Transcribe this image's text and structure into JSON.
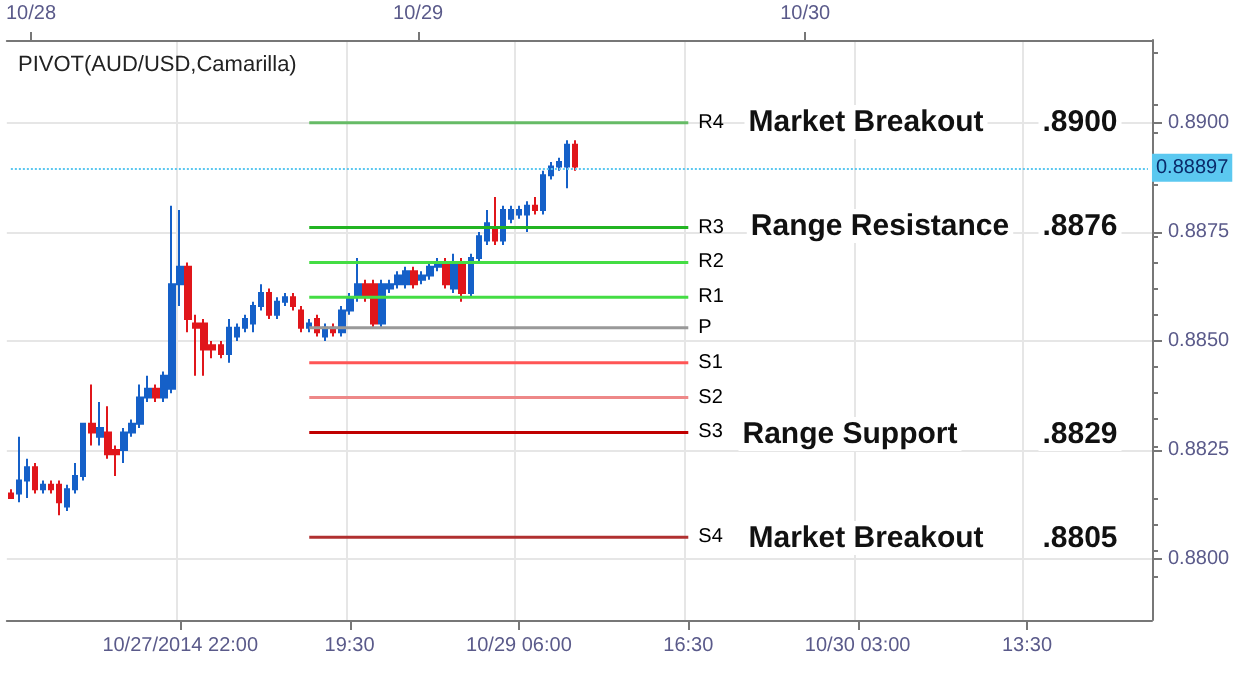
{
  "chart_data": {
    "type": "candlestick",
    "title": "PIVOT(AUD/USD,Camarilla)",
    "categories": [
      null,
      null,
      null,
      null,
      null,
      null,
      null,
      null,
      null,
      null,
      null,
      null,
      null,
      null,
      null,
      null,
      null,
      null,
      null,
      null,
      null,
      "10/27/2014 22:00",
      null,
      null,
      null,
      null,
      null,
      null,
      null,
      null,
      null,
      null,
      null,
      null,
      null,
      null,
      null,
      null,
      null,
      null,
      null,
      null,
      "19:30",
      null,
      null,
      null,
      null,
      null,
      null,
      null,
      null,
      null,
      null,
      null,
      null,
      null,
      null,
      null,
      null,
      null,
      null,
      null,
      null,
      "10/29 06:00",
      null,
      null,
      null,
      null,
      null,
      null,
      null,
      null,
      null,
      null,
      null,
      null,
      null,
      null,
      null,
      null,
      null,
      null,
      null,
      null,
      "16:30",
      null,
      null,
      null,
      null,
      null,
      null,
      null,
      null,
      null,
      null,
      null,
      null,
      null,
      null,
      null,
      null,
      null,
      null,
      null,
      null,
      "10/30 03:00",
      null,
      null,
      null,
      null,
      null,
      null,
      null,
      null,
      null,
      null,
      null,
      null,
      null,
      null,
      null,
      null,
      null,
      null,
      null,
      null,
      "13:30",
      null,
      null,
      null,
      null,
      null,
      null,
      null,
      null,
      null,
      null,
      null,
      null,
      null,
      null,
      null
    ],
    "ohlc": [
      [
        0.8815,
        0.8816,
        0.8814,
        0.8814
      ],
      [
        0.8815,
        0.8828,
        0.8813,
        0.8818
      ],
      [
        0.8818,
        0.8823,
        0.8814,
        0.8821
      ],
      [
        0.8821,
        0.8822,
        0.8815,
        0.8816
      ],
      [
        0.8816,
        0.8818,
        0.8815,
        0.8817
      ],
      [
        0.8817,
        0.8818,
        0.8815,
        0.8816
      ],
      [
        0.8817,
        0.8818,
        0.881,
        0.8813
      ],
      [
        0.8812,
        0.8817,
        0.8811,
        0.8816
      ],
      [
        0.8816,
        0.8822,
        0.8815,
        0.8819
      ],
      [
        0.8819,
        0.8831,
        0.8818,
        0.8831
      ],
      [
        0.8831,
        0.884,
        0.8826,
        0.8829
      ],
      [
        0.8828,
        0.8836,
        0.8826,
        0.883
      ],
      [
        0.8829,
        0.8835,
        0.8823,
        0.8824
      ],
      [
        0.8825,
        0.8826,
        0.8819,
        0.8824
      ],
      [
        0.8825,
        0.883,
        0.8822,
        0.8829
      ],
      [
        0.8829,
        0.8832,
        0.8828,
        0.8831
      ],
      [
        0.8831,
        0.884,
        0.883,
        0.8837
      ],
      [
        0.8837,
        0.8842,
        0.8836,
        0.8839
      ],
      [
        0.8839,
        0.884,
        0.8836,
        0.8837
      ],
      [
        0.8837,
        0.8843,
        0.8836,
        0.8842
      ],
      [
        0.8839,
        0.8881,
        0.8838,
        0.8863
      ],
      [
        0.8863,
        0.888,
        0.8858,
        0.8867
      ],
      [
        0.8867,
        0.8868,
        0.8852,
        0.8855
      ],
      [
        0.8854,
        0.8856,
        0.8842,
        0.8853
      ],
      [
        0.8854,
        0.8855,
        0.8842,
        0.8848
      ],
      [
        0.8849,
        0.885,
        0.8846,
        0.8848
      ],
      [
        0.8849,
        0.885,
        0.8846,
        0.8847
      ],
      [
        0.8847,
        0.8855,
        0.8845,
        0.8853
      ],
      [
        0.8851,
        0.8854,
        0.885,
        0.8853
      ],
      [
        0.8853,
        0.8856,
        0.8852,
        0.8855
      ],
      [
        0.8854,
        0.8859,
        0.8852,
        0.8858
      ],
      [
        0.8858,
        0.8863,
        0.8857,
        0.8861
      ],
      [
        0.8861,
        0.8862,
        0.8855,
        0.8856
      ],
      [
        0.8856,
        0.886,
        0.8855,
        0.8859
      ],
      [
        0.8859,
        0.8861,
        0.8858,
        0.886
      ],
      [
        0.886,
        0.8861,
        0.8857,
        0.8858
      ],
      [
        0.8857,
        0.8858,
        0.8852,
        0.8853
      ],
      [
        0.8853,
        0.8855,
        0.8852,
        0.8854
      ],
      [
        0.8855,
        0.8856,
        0.8851,
        0.8852
      ],
      [
        0.8851,
        0.8854,
        0.885,
        0.8853
      ],
      [
        0.8853,
        0.8854,
        0.8851,
        0.8852
      ],
      [
        0.8852,
        0.8858,
        0.8851,
        0.8857
      ],
      [
        0.8857,
        0.8861,
        0.8856,
        0.886
      ],
      [
        0.886,
        0.8869,
        0.8859,
        0.8863
      ],
      [
        0.8863,
        0.8864,
        0.8859,
        0.886
      ],
      [
        0.8863,
        0.8864,
        0.8853,
        0.8854
      ],
      [
        0.8854,
        0.8864,
        0.8853,
        0.8863
      ],
      [
        0.8862,
        0.8864,
        0.8861,
        0.8863
      ],
      [
        0.8863,
        0.8866,
        0.8862,
        0.8865
      ],
      [
        0.8863,
        0.8867,
        0.8862,
        0.8866
      ],
      [
        0.8866,
        0.8867,
        0.8862,
        0.8863
      ],
      [
        0.8864,
        0.8866,
        0.8863,
        0.8865
      ],
      [
        0.8865,
        0.8868,
        0.8864,
        0.8867
      ],
      [
        0.8867,
        0.8869,
        0.8866,
        0.8868
      ],
      [
        0.8868,
        0.8869,
        0.8862,
        0.8863
      ],
      [
        0.8862,
        0.887,
        0.8861,
        0.8868
      ],
      [
        0.8868,
        0.8869,
        0.8859,
        0.8861
      ],
      [
        0.8861,
        0.887,
        0.886,
        0.8869
      ],
      [
        0.8869,
        0.8875,
        0.8868,
        0.8874
      ],
      [
        0.8873,
        0.888,
        0.8872,
        0.8877
      ],
      [
        0.8876,
        0.8883,
        0.8872,
        0.8873
      ],
      [
        0.8873,
        0.8881,
        0.8872,
        0.888
      ],
      [
        0.8878,
        0.8881,
        0.8877,
        0.888
      ],
      [
        0.8879,
        0.8881,
        0.8878,
        0.888
      ],
      [
        0.8879,
        0.8882,
        0.8875,
        0.8881
      ],
      [
        0.8881,
        0.8883,
        0.8879,
        0.888
      ],
      [
        0.888,
        0.8889,
        0.8879,
        0.8888
      ],
      [
        0.8888,
        0.8891,
        0.8887,
        0.889
      ],
      [
        0.889,
        0.8892,
        0.8889,
        0.8891
      ],
      [
        0.889,
        0.8896,
        0.8885,
        0.8895
      ],
      [
        0.8895,
        0.8896,
        0.8889,
        0.889
      ],
      null,
      null,
      null,
      null,
      null,
      null,
      null,
      null,
      null,
      null,
      null,
      null,
      null,
      null,
      null,
      null,
      null,
      null,
      null,
      null,
      null,
      null,
      null,
      null,
      null,
      null,
      null,
      null,
      null,
      null,
      null,
      null,
      null,
      null,
      null,
      null,
      null,
      null,
      null,
      null,
      null,
      null,
      null,
      null,
      null,
      null,
      null,
      null,
      null,
      null,
      null,
      null,
      null,
      null,
      null,
      null,
      null,
      null,
      null,
      null,
      null,
      null,
      null,
      null,
      null,
      null,
      null,
      null,
      null,
      null,
      null
    ],
    "colors": [
      "#e0161b",
      "#1560c8",
      "#1560c8",
      "#e0161b",
      "#1560c8",
      "#e0161b",
      "#e0161b",
      "#1560c8",
      "#1560c8",
      "#1560c8",
      "#e0161b",
      "#1560c8",
      "#e0161b",
      "#e0161b",
      "#1560c8",
      "#1560c8",
      "#1560c8",
      "#1560c8",
      "#e0161b",
      "#1560c8",
      "#1560c8",
      "#1560c8",
      "#e0161b",
      "#e0161b",
      "#e0161b",
      "#e0161b",
      "#e0161b",
      "#1560c8",
      "#1560c8",
      "#1560c8",
      "#1560c8",
      "#1560c8",
      "#e0161b",
      "#1560c8",
      "#1560c8",
      "#e0161b",
      "#e0161b",
      "#1560c8",
      "#e0161b",
      "#1560c8",
      "#e0161b",
      "#1560c8",
      "#1560c8",
      "#1560c8",
      "#e0161b",
      "#e0161b",
      "#1560c8",
      "#1560c8",
      "#1560c8",
      "#1560c8",
      "#e0161b",
      "#1560c8",
      "#1560c8",
      "#1560c8",
      "#e0161b",
      "#1560c8",
      "#e0161b",
      "#1560c8",
      "#1560c8",
      "#1560c8",
      "#e0161b",
      "#1560c8",
      "#1560c8",
      "#1560c8",
      "#1560c8",
      "#e0161b",
      "#1560c8",
      "#1560c8",
      "#1560c8",
      "#1560c8",
      "#e0161b",
      null,
      null,
      null,
      null,
      null,
      null,
      null,
      null,
      null,
      null,
      null,
      null,
      null,
      null,
      null,
      null,
      null,
      null,
      null,
      null,
      null,
      null,
      null,
      null,
      null,
      null,
      null,
      null,
      null,
      null,
      null,
      null,
      null,
      null,
      null,
      null,
      null,
      null,
      null,
      null,
      null,
      null,
      null,
      null,
      null,
      null,
      null,
      null,
      null,
      null,
      null,
      null,
      null,
      null,
      null,
      null,
      null,
      null,
      null,
      null,
      null,
      null,
      null,
      null,
      null,
      null,
      null,
      null,
      null,
      null,
      null
    ],
    "series": [
      {
        "type": "line",
        "name": "R4",
        "color": "#66bb66",
        "values": [
          null,
          null,
          null,
          null,
          null,
          null,
          null,
          null,
          null,
          null,
          null,
          null,
          null,
          null,
          null,
          null,
          null,
          null,
          null,
          null,
          null,
          null,
          null,
          null,
          null,
          null,
          null,
          null,
          null,
          null,
          null,
          null,
          null,
          null,
          null,
          null,
          null,
          0.89,
          0.89,
          0.89,
          0.89,
          0.89,
          0.89,
          0.89,
          0.89,
          0.89,
          0.89,
          0.89,
          0.89,
          0.89,
          0.89,
          0.89,
          0.89,
          0.89,
          0.89,
          0.89,
          0.89,
          0.89,
          0.89,
          0.89,
          0.89,
          0.89,
          0.89,
          0.89,
          0.89,
          0.89,
          0.89,
          0.89,
          0.89,
          0.89,
          0.89,
          0.89,
          0.89,
          0.89,
          0.89,
          0.89,
          0.89,
          0.89,
          0.89,
          0.89,
          0.89,
          0.89,
          0.89,
          0.89,
          0.89,
          null,
          null,
          null,
          null,
          null,
          null,
          null,
          null,
          null,
          null,
          null,
          null,
          null,
          null,
          null,
          null,
          null,
          null,
          null,
          null,
          null,
          null,
          null,
          null,
          null,
          null,
          null,
          null,
          null,
          null,
          null,
          null,
          null,
          null,
          null,
          null,
          null,
          null,
          null,
          null,
          null,
          null,
          null,
          null,
          null,
          null,
          null,
          null,
          null,
          null,
          null,
          null,
          null,
          null,
          null,
          null,
          null
        ]
      },
      {
        "type": "line",
        "name": "R3",
        "color": "#22b422",
        "values": [
          null,
          null,
          null,
          null,
          null,
          null,
          null,
          null,
          null,
          null,
          null,
          null,
          null,
          null,
          null,
          null,
          null,
          null,
          null,
          null,
          null,
          null,
          null,
          null,
          null,
          null,
          null,
          null,
          null,
          null,
          null,
          null,
          null,
          null,
          null,
          null,
          null,
          0.8876,
          0.8876,
          0.8876,
          0.8876,
          0.8876,
          0.8876,
          0.8876,
          0.8876,
          0.8876,
          0.8876,
          0.8876,
          0.8876,
          0.8876,
          0.8876,
          0.8876,
          0.8876,
          0.8876,
          0.8876,
          0.8876,
          0.8876,
          0.8876,
          0.8876,
          0.8876,
          0.8876,
          0.8876,
          0.8876,
          0.8876,
          0.8876,
          0.8876,
          0.8876,
          0.8876,
          0.8876,
          0.8876,
          0.8876,
          0.8876,
          0.8876,
          0.8876,
          0.8876,
          0.8876,
          0.8876,
          0.8876,
          0.8876,
          0.8876,
          0.8876,
          0.8876,
          0.8876,
          0.8876,
          0.8876,
          null,
          null,
          null,
          null,
          null,
          null,
          null,
          null,
          null,
          null,
          null,
          null,
          null,
          null,
          null,
          null,
          null,
          null,
          null,
          null,
          null,
          null,
          null,
          null,
          null,
          null,
          null,
          null,
          null,
          null,
          null,
          null,
          null,
          null,
          null,
          null,
          null,
          null,
          null,
          null,
          null,
          null,
          null,
          null,
          null,
          null,
          null,
          null,
          null,
          null,
          null,
          null,
          null,
          null,
          null,
          null,
          null
        ]
      },
      {
        "type": "line",
        "name": "R2",
        "color": "#44dd44",
        "values": [
          null,
          null,
          null,
          null,
          null,
          null,
          null,
          null,
          null,
          null,
          null,
          null,
          null,
          null,
          null,
          null,
          null,
          null,
          null,
          null,
          null,
          null,
          null,
          null,
          null,
          null,
          null,
          null,
          null,
          null,
          null,
          null,
          null,
          null,
          null,
          null,
          null,
          0.8868,
          0.8868,
          0.8868,
          0.8868,
          0.8868,
          0.8868,
          0.8868,
          0.8868,
          0.8868,
          0.8868,
          0.8868,
          0.8868,
          0.8868,
          0.8868,
          0.8868,
          0.8868,
          0.8868,
          0.8868,
          0.8868,
          0.8868,
          0.8868,
          0.8868,
          0.8868,
          0.8868,
          0.8868,
          0.8868,
          0.8868,
          0.8868,
          0.8868,
          0.8868,
          0.8868,
          0.8868,
          0.8868,
          0.8868,
          0.8868,
          0.8868,
          0.8868,
          0.8868,
          0.8868,
          0.8868,
          0.8868,
          0.8868,
          0.8868,
          0.8868,
          0.8868,
          0.8868,
          0.8868,
          0.8868,
          null,
          null,
          null,
          null,
          null,
          null,
          null,
          null,
          null,
          null,
          null,
          null,
          null,
          null,
          null,
          null,
          null,
          null,
          null,
          null,
          null,
          null,
          null,
          null,
          null,
          null,
          null,
          null,
          null,
          null,
          null,
          null,
          null,
          null,
          null,
          null,
          null,
          null,
          null,
          null,
          null,
          null,
          null,
          null,
          null,
          null,
          null,
          null,
          null,
          null,
          null,
          null,
          null,
          null,
          null,
          null,
          null
        ]
      },
      {
        "type": "line",
        "name": "R1",
        "color": "#44dd44",
        "values": [
          null,
          null,
          null,
          null,
          null,
          null,
          null,
          null,
          null,
          null,
          null,
          null,
          null,
          null,
          null,
          null,
          null,
          null,
          null,
          null,
          null,
          null,
          null,
          null,
          null,
          null,
          null,
          null,
          null,
          null,
          null,
          null,
          null,
          null,
          null,
          null,
          null,
          0.886,
          0.886,
          0.886,
          0.886,
          0.886,
          0.886,
          0.886,
          0.886,
          0.886,
          0.886,
          0.886,
          0.886,
          0.886,
          0.886,
          0.886,
          0.886,
          0.886,
          0.886,
          0.886,
          0.886,
          0.886,
          0.886,
          0.886,
          0.886,
          0.886,
          0.886,
          0.886,
          0.886,
          0.886,
          0.886,
          0.886,
          0.886,
          0.886,
          0.886,
          0.886,
          0.886,
          0.886,
          0.886,
          0.886,
          0.886,
          0.886,
          0.886,
          0.886,
          0.886,
          0.886,
          0.886,
          0.886,
          0.886,
          null,
          null,
          null,
          null,
          null,
          null,
          null,
          null,
          null,
          null,
          null,
          null,
          null,
          null,
          null,
          null,
          null,
          null,
          null,
          null,
          null,
          null,
          null,
          null,
          null,
          null,
          null,
          null,
          null,
          null,
          null,
          null,
          null,
          null,
          null,
          null,
          null,
          null,
          null,
          null,
          null,
          null,
          null,
          null,
          null,
          null,
          null,
          null,
          null,
          null,
          null,
          null,
          null,
          null,
          null,
          null,
          null
        ]
      },
      {
        "type": "line",
        "name": "P",
        "color": "#999999",
        "values": [
          null,
          null,
          null,
          null,
          null,
          null,
          null,
          null,
          null,
          null,
          null,
          null,
          null,
          null,
          null,
          null,
          null,
          null,
          null,
          null,
          null,
          null,
          null,
          null,
          null,
          null,
          null,
          null,
          null,
          null,
          null,
          null,
          null,
          null,
          null,
          null,
          null,
          0.8853,
          0.8853,
          0.8853,
          0.8853,
          0.8853,
          0.8853,
          0.8853,
          0.8853,
          0.8853,
          0.8853,
          0.8853,
          0.8853,
          0.8853,
          0.8853,
          0.8853,
          0.8853,
          0.8853,
          0.8853,
          0.8853,
          0.8853,
          0.8853,
          0.8853,
          0.8853,
          0.8853,
          0.8853,
          0.8853,
          0.8853,
          0.8853,
          0.8853,
          0.8853,
          0.8853,
          0.8853,
          0.8853,
          0.8853,
          0.8853,
          0.8853,
          0.8853,
          0.8853,
          0.8853,
          0.8853,
          0.8853,
          0.8853,
          0.8853,
          0.8853,
          0.8853,
          0.8853,
          0.8853,
          0.8853,
          null,
          null,
          null,
          null,
          null,
          null,
          null,
          null,
          null,
          null,
          null,
          null,
          null,
          null,
          null,
          null,
          null,
          null,
          null,
          null,
          null,
          null,
          null,
          null,
          null,
          null,
          null,
          null,
          null,
          null,
          null,
          null,
          null,
          null,
          null,
          null,
          null,
          null,
          null,
          null,
          null,
          null,
          null,
          null,
          null,
          null,
          null,
          null,
          null,
          null,
          null,
          null,
          null,
          null,
          null,
          null,
          null
        ]
      },
      {
        "type": "line",
        "name": "S1",
        "color": "#ff5555",
        "values": [
          null,
          null,
          null,
          null,
          null,
          null,
          null,
          null,
          null,
          null,
          null,
          null,
          null,
          null,
          null,
          null,
          null,
          null,
          null,
          null,
          null,
          null,
          null,
          null,
          null,
          null,
          null,
          null,
          null,
          null,
          null,
          null,
          null,
          null,
          null,
          null,
          null,
          0.8845,
          0.8845,
          0.8845,
          0.8845,
          0.8845,
          0.8845,
          0.8845,
          0.8845,
          0.8845,
          0.8845,
          0.8845,
          0.8845,
          0.8845,
          0.8845,
          0.8845,
          0.8845,
          0.8845,
          0.8845,
          0.8845,
          0.8845,
          0.8845,
          0.8845,
          0.8845,
          0.8845,
          0.8845,
          0.8845,
          0.8845,
          0.8845,
          0.8845,
          0.8845,
          0.8845,
          0.8845,
          0.8845,
          0.8845,
          0.8845,
          0.8845,
          0.8845,
          0.8845,
          0.8845,
          0.8845,
          0.8845,
          0.8845,
          0.8845,
          0.8845,
          0.8845,
          0.8845,
          0.8845,
          0.8845,
          null,
          null,
          null,
          null,
          null,
          null,
          null,
          null,
          null,
          null,
          null,
          null,
          null,
          null,
          null,
          null,
          null,
          null,
          null,
          null,
          null,
          null,
          null,
          null,
          null,
          null,
          null,
          null,
          null,
          null,
          null,
          null,
          null,
          null,
          null,
          null,
          null,
          null,
          null,
          null,
          null,
          null,
          null,
          null,
          null,
          null,
          null,
          null,
          null,
          null,
          null,
          null,
          null,
          null,
          null,
          null,
          null
        ]
      },
      {
        "type": "line",
        "name": "S2",
        "color": "#ee8888",
        "values": [
          null,
          null,
          null,
          null,
          null,
          null,
          null,
          null,
          null,
          null,
          null,
          null,
          null,
          null,
          null,
          null,
          null,
          null,
          null,
          null,
          null,
          null,
          null,
          null,
          null,
          null,
          null,
          null,
          null,
          null,
          null,
          null,
          null,
          null,
          null,
          null,
          null,
          0.8837,
          0.8837,
          0.8837,
          0.8837,
          0.8837,
          0.8837,
          0.8837,
          0.8837,
          0.8837,
          0.8837,
          0.8837,
          0.8837,
          0.8837,
          0.8837,
          0.8837,
          0.8837,
          0.8837,
          0.8837,
          0.8837,
          0.8837,
          0.8837,
          0.8837,
          0.8837,
          0.8837,
          0.8837,
          0.8837,
          0.8837,
          0.8837,
          0.8837,
          0.8837,
          0.8837,
          0.8837,
          0.8837,
          0.8837,
          0.8837,
          0.8837,
          0.8837,
          0.8837,
          0.8837,
          0.8837,
          0.8837,
          0.8837,
          0.8837,
          0.8837,
          0.8837,
          0.8837,
          0.8837,
          0.8837,
          null,
          null,
          null,
          null,
          null,
          null,
          null,
          null,
          null,
          null,
          null,
          null,
          null,
          null,
          null,
          null,
          null,
          null,
          null,
          null,
          null,
          null,
          null,
          null,
          null,
          null,
          null,
          null,
          null,
          null,
          null,
          null,
          null,
          null,
          null,
          null,
          null,
          null,
          null,
          null,
          null,
          null,
          null,
          null,
          null,
          null,
          null,
          null,
          null,
          null,
          null,
          null,
          null,
          null,
          null,
          null,
          null
        ]
      },
      {
        "type": "line",
        "name": "S3",
        "color": "#c00000",
        "values": [
          null,
          null,
          null,
          null,
          null,
          null,
          null,
          null,
          null,
          null,
          null,
          null,
          null,
          null,
          null,
          null,
          null,
          null,
          null,
          null,
          null,
          null,
          null,
          null,
          null,
          null,
          null,
          null,
          null,
          null,
          null,
          null,
          null,
          null,
          null,
          null,
          null,
          0.8829,
          0.8829,
          0.8829,
          0.8829,
          0.8829,
          0.8829,
          0.8829,
          0.8829,
          0.8829,
          0.8829,
          0.8829,
          0.8829,
          0.8829,
          0.8829,
          0.8829,
          0.8829,
          0.8829,
          0.8829,
          0.8829,
          0.8829,
          0.8829,
          0.8829,
          0.8829,
          0.8829,
          0.8829,
          0.8829,
          0.8829,
          0.8829,
          0.8829,
          0.8829,
          0.8829,
          0.8829,
          0.8829,
          0.8829,
          0.8829,
          0.8829,
          0.8829,
          0.8829,
          0.8829,
          0.8829,
          0.8829,
          0.8829,
          0.8829,
          0.8829,
          0.8829,
          0.8829,
          0.8829,
          0.8829,
          null,
          null,
          null,
          null,
          null,
          null,
          null,
          null,
          null,
          null,
          null,
          null,
          null,
          null,
          null,
          null,
          null,
          null,
          null,
          null,
          null,
          null,
          null,
          null,
          null,
          null,
          null,
          null,
          null,
          null,
          null,
          null,
          null,
          null,
          null,
          null,
          null,
          null,
          null,
          null,
          null,
          null,
          null,
          null,
          null,
          null,
          null,
          null,
          null,
          null,
          null,
          null,
          null,
          null,
          null,
          null,
          null
        ]
      },
      {
        "type": "line",
        "name": "S4",
        "color": "#b03030",
        "values": [
          null,
          null,
          null,
          null,
          null,
          null,
          null,
          null,
          null,
          null,
          null,
          null,
          null,
          null,
          null,
          null,
          null,
          null,
          null,
          null,
          null,
          null,
          null,
          null,
          null,
          null,
          null,
          null,
          null,
          null,
          null,
          null,
          null,
          null,
          null,
          null,
          null,
          0.8805,
          0.8805,
          0.8805,
          0.8805,
          0.8805,
          0.8805,
          0.8805,
          0.8805,
          0.8805,
          0.8805,
          0.8805,
          0.8805,
          0.8805,
          0.8805,
          0.8805,
          0.8805,
          0.8805,
          0.8805,
          0.8805,
          0.8805,
          0.8805,
          0.8805,
          0.8805,
          0.8805,
          0.8805,
          0.8805,
          0.8805,
          0.8805,
          0.8805,
          0.8805,
          0.8805,
          0.8805,
          0.8805,
          0.8805,
          0.8805,
          0.8805,
          0.8805,
          0.8805,
          0.8805,
          0.8805,
          0.8805,
          0.8805,
          0.8805,
          0.8805,
          0.8805,
          0.8805,
          0.8805,
          0.8805,
          null,
          null,
          null,
          null,
          null,
          null,
          null,
          null,
          null,
          null,
          null,
          null,
          null,
          null,
          null,
          null,
          null,
          null,
          null,
          null,
          null,
          null,
          null,
          null,
          null,
          null,
          null,
          null,
          null,
          null,
          null,
          null,
          null,
          null,
          null,
          null,
          null,
          null,
          null,
          null,
          null,
          null,
          null,
          null,
          null,
          null,
          null,
          null,
          null,
          null,
          null,
          null,
          null,
          null,
          null,
          null,
          null
        ]
      }
    ],
    "annotations": [
      "Market Breakout",
      ".8900",
      "Range Resistance",
      ".8876",
      "Range Support",
      ".8829",
      "Market Breakout",
      ".8805"
    ],
    "ref_lines": [
      {
        "axis": "y",
        "value": 0.88897,
        "label": "0.88897",
        "color": "#5bc8f0",
        "line_style": "dotted"
      }
    ],
    "x2lim": [
      "2014-10-27T22:30",
      "2014-10-30T21:30"
    ],
    "x2ticks": [
      {
        "value": "2014-10-28",
        "label": "10/28"
      },
      {
        "value": "2014-10-29",
        "label": "10/29"
      },
      {
        "value": "2014-10-30",
        "label": "10/30"
      }
    ],
    "ylim": [
      0.8786,
      0.8919
    ],
    "yticks": [
      {
        "value": 0.88,
        "label": "0.8800"
      },
      {
        "value": 0.8825,
        "label": "0.8825"
      },
      {
        "value": 0.885,
        "label": "0.8850"
      },
      {
        "value": 0.8875,
        "label": "0.8875"
      },
      {
        "value": 0.89,
        "label": "0.8900"
      }
    ],
    "grid": true
  }
}
